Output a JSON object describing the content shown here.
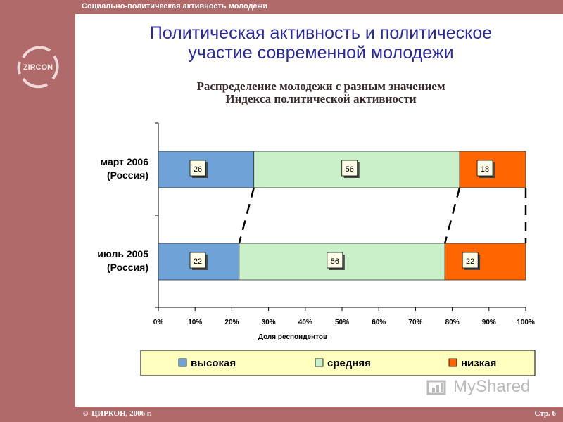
{
  "header": {
    "text": "Социально-политическая активность молодежи"
  },
  "logo": {
    "text": "ZIRCON"
  },
  "title": {
    "line1": "Политическая активность и политическое",
    "line2": "участие современной молодежи"
  },
  "subtitle": {
    "line1": "Распределение молодежи с разным значением",
    "line2": "Индекса политической активности"
  },
  "footer": {
    "left": "☺ ЦИРКОН, 2006 г.",
    "right": "Стр. 6"
  },
  "watermark": {
    "text": "MyShared"
  },
  "colors": {
    "frame": "#b06a6a",
    "high": "#6fa3d8",
    "medium": "#c9f0c9",
    "low": "#ff6600",
    "legend_bg": "#ffffc0"
  },
  "chart_data": {
    "type": "bar",
    "stacked": true,
    "orientation": "horizontal",
    "categories": [
      [
        "март 2006",
        "(Россия)"
      ],
      [
        "июль 2005",
        "(Россия)"
      ]
    ],
    "series": [
      {
        "name": "высокая",
        "values": [
          26,
          22
        ]
      },
      {
        "name": "средняя",
        "values": [
          56,
          56
        ]
      },
      {
        "name": "низкая",
        "values": [
          18,
          22
        ]
      }
    ],
    "xlabel": "Доля респондентов",
    "xlim": [
      0,
      100
    ],
    "xticks": [
      "0%",
      "10%",
      "20%",
      "30%",
      "40%",
      "50%",
      "60%",
      "70%",
      "80%",
      "90%",
      "100%"
    ],
    "legend_position": "bottom",
    "grid": false
  }
}
